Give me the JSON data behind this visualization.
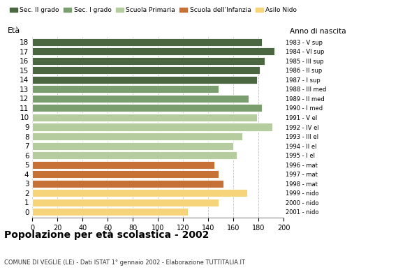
{
  "ages": [
    18,
    17,
    16,
    15,
    14,
    13,
    12,
    11,
    10,
    9,
    8,
    7,
    6,
    5,
    4,
    3,
    2,
    1,
    0
  ],
  "values": [
    183,
    193,
    185,
    181,
    179,
    148,
    172,
    183,
    179,
    191,
    167,
    160,
    163,
    145,
    148,
    152,
    171,
    148,
    124
  ],
  "right_labels": [
    "1983 - V sup",
    "1984 - VI sup",
    "1985 - III sup",
    "1986 - II sup",
    "1987 - I sup",
    "1988 - III med",
    "1989 - II med",
    "1990 - I med",
    "1991 - V el",
    "1992 - IV el",
    "1993 - III el",
    "1994 - II el",
    "1995 - I el",
    "1996 - mat",
    "1997 - mat",
    "1998 - mat",
    "1999 - nido",
    "2000 - nido",
    "2001 - nido"
  ],
  "colors": [
    "#4a6741",
    "#4a6741",
    "#4a6741",
    "#4a6741",
    "#4a6741",
    "#7a9e6e",
    "#7a9e6e",
    "#7a9e6e",
    "#b5cc9e",
    "#b5cc9e",
    "#b5cc9e",
    "#b5cc9e",
    "#b5cc9e",
    "#c87137",
    "#c87137",
    "#c87137",
    "#f5d47a",
    "#f5d47a",
    "#f5d47a"
  ],
  "legend_labels": [
    "Sec. II grado",
    "Sec. I grado",
    "Scuola Primaria",
    "Scuola dell'Infanzia",
    "Asilo Nido"
  ],
  "legend_colors": [
    "#4a6741",
    "#7a9e6e",
    "#b5cc9e",
    "#c87137",
    "#f5d47a"
  ],
  "title": "Popolazione per età scolastica - 2002",
  "subtitle": "COMUNE DI VEGLIE (LE) - Dati ISTAT 1° gennaio 2002 - Elaborazione TUTTITALIA.IT",
  "ylabel": "Età",
  "right_ylabel": "Anno di nascita",
  "xlim": [
    0,
    200
  ],
  "xticks": [
    0,
    20,
    40,
    60,
    80,
    100,
    120,
    140,
    160,
    180,
    200
  ],
  "bar_height": 0.82,
  "background_color": "#ffffff",
  "grid_color": "#aaaaaa"
}
